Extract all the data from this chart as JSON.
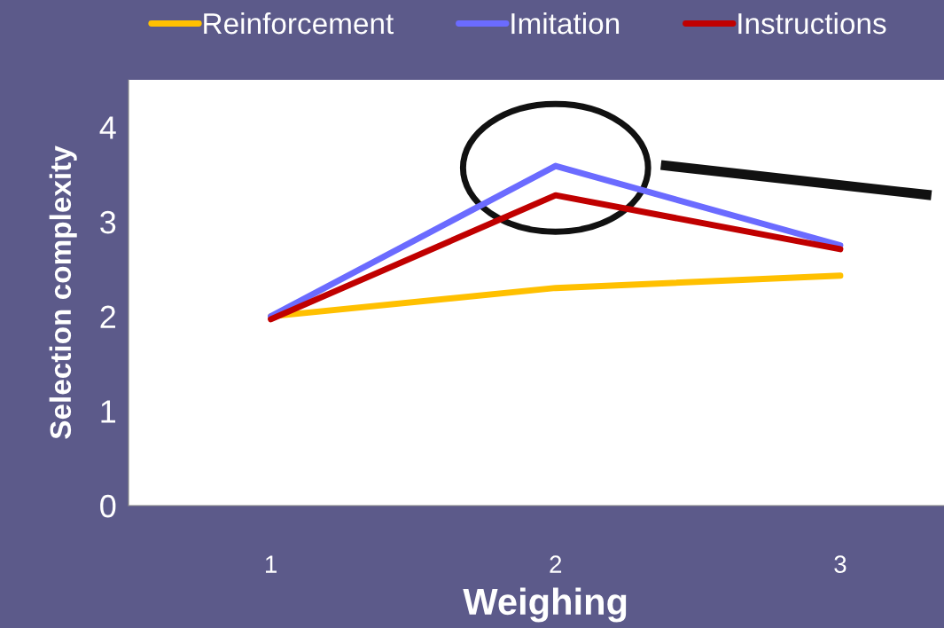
{
  "chart_data": {
    "type": "line",
    "xlabel": "Weighing",
    "ylabel": "Selection complexity",
    "categories": [
      "1",
      "2",
      "3"
    ],
    "series": [
      {
        "name": "Reinforcement",
        "color": "#ffc000",
        "values": [
          2.0,
          2.3,
          2.43
        ]
      },
      {
        "name": "Imitation",
        "color": "#6b6bff",
        "values": [
          2.0,
          3.59,
          2.75
        ]
      },
      {
        "name": "Instructions",
        "color": "#c00000",
        "values": [
          1.97,
          3.28,
          2.71
        ]
      }
    ],
    "ylim": [
      0,
      4.5
    ],
    "yticks": [
      0,
      1,
      2,
      3,
      4
    ],
    "grid": false,
    "legend": "top",
    "marker": "none",
    "line_style": "solid"
  }
}
